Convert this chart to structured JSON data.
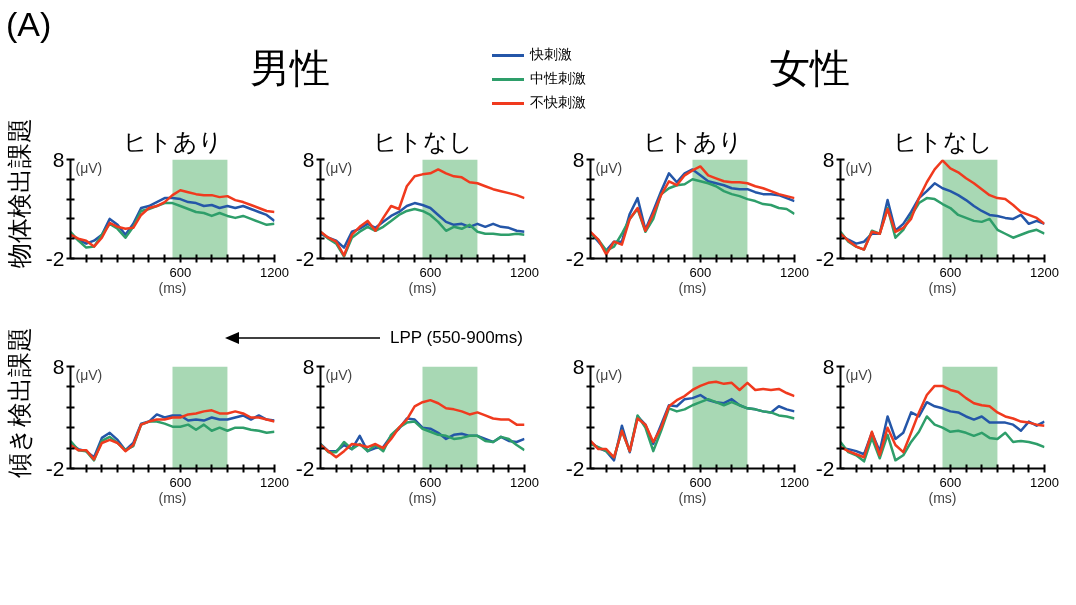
{
  "chart_data": [
    {
      "type": "line",
      "title": "ヒトあり",
      "xlabel": "(ms)",
      "ylabel": "(μV)",
      "legend": "top",
      "annotations": [
        "(A)",
        "男性",
        "物体検出課題",
        "LPP (550-900ms)"
      ],
      "xlim": [
        -100,
        1200
      ],
      "ylim": [
        -2,
        8
      ],
      "xticks": [
        {
          "value": 0,
          "label": null
        },
        {
          "value": 100,
          "label": null
        },
        {
          "value": 200,
          "label": null
        },
        {
          "value": 300,
          "label": null
        },
        {
          "value": 400,
          "label": null
        },
        {
          "value": 500,
          "label": null
        },
        600,
        {
          "value": 700,
          "label": null
        },
        {
          "value": 800,
          "label": null
        },
        {
          "value": 900,
          "label": null
        },
        {
          "value": 1000,
          "label": null
        },
        {
          "value": 1100,
          "label": null
        },
        1200
      ],
      "yticks": [
        -2,
        {
          "value": 0,
          "label": null
        },
        {
          "value": 2,
          "label": null
        },
        {
          "value": 4,
          "label": null
        },
        {
          "value": 6,
          "label": null
        },
        8
      ],
      "bands": [
        {
          "axis": "x",
          "from": 550,
          "to": 900,
          "color": "#a8d8b4"
        }
      ],
      "x": [
        -100,
        -50,
        0,
        50,
        100,
        150,
        200,
        250,
        300,
        350,
        400,
        450,
        500,
        550,
        600,
        650,
        700,
        750,
        800,
        850,
        900,
        950,
        1000,
        1050,
        1100,
        1150,
        1200
      ],
      "series": [
        {
          "name": "快刺激",
          "color": "#2456a8",
          "values": [
            0.4,
            -0.1,
            -0.5,
            -0.2,
            0.4,
            2.0,
            1.4,
            0.4,
            1.5,
            3.1,
            3.3,
            3.7,
            4.1,
            4.1,
            4.0,
            3.7,
            3.6,
            3.3,
            3.4,
            3.1,
            3.3,
            3.1,
            3.3,
            3.0,
            2.7,
            2.4,
            1.8
          ]
        },
        {
          "name": "中性刺激",
          "color": "#2e9e6a",
          "values": [
            0.7,
            -0.2,
            -0.9,
            -0.8,
            0.4,
            1.5,
            1.0,
            0.1,
            1.2,
            2.8,
            3.0,
            3.3,
            3.6,
            3.6,
            3.3,
            3.0,
            2.7,
            2.6,
            2.3,
            2.6,
            2.3,
            2.1,
            2.3,
            2.0,
            1.7,
            1.4,
            1.5
          ]
        },
        {
          "name": "不快刺激",
          "color": "#f03a1e",
          "values": [
            0.4,
            0,
            -0.2,
            -0.8,
            0.1,
            1.6,
            1.2,
            1.0,
            1.1,
            2.4,
            3.1,
            3.3,
            3.7,
            4.4,
            4.9,
            4.7,
            4.5,
            4.4,
            4.4,
            4.2,
            4.3,
            3.9,
            3.7,
            3.4,
            3.1,
            2.8,
            2.7
          ]
        }
      ]
    },
    {
      "type": "line",
      "title": "ヒトなし",
      "xlabel": "(ms)",
      "ylabel": "(μV)",
      "xlim": [
        -100,
        1200
      ],
      "ylim": [
        -2,
        8
      ],
      "xticks": [
        {
          "value": 0,
          "label": null
        },
        {
          "value": 100,
          "label": null
        },
        {
          "value": 200,
          "label": null
        },
        {
          "value": 300,
          "label": null
        },
        {
          "value": 400,
          "label": null
        },
        {
          "value": 500,
          "label": null
        },
        600,
        {
          "value": 700,
          "label": null
        },
        {
          "value": 800,
          "label": null
        },
        {
          "value": 900,
          "label": null
        },
        {
          "value": 1000,
          "label": null
        },
        {
          "value": 1100,
          "label": null
        },
        1200
      ],
      "yticks": [
        -2,
        {
          "value": 0,
          "label": null
        },
        {
          "value": 2,
          "label": null
        },
        {
          "value": 4,
          "label": null
        },
        {
          "value": 6,
          "label": null
        },
        8
      ],
      "bands": [
        {
          "axis": "x",
          "from": 550,
          "to": 900,
          "color": "#a8d8b4"
        }
      ],
      "x": [
        -100,
        -50,
        0,
        50,
        100,
        150,
        200,
        250,
        300,
        350,
        400,
        450,
        500,
        550,
        600,
        650,
        700,
        750,
        800,
        850,
        900,
        950,
        1000,
        1050,
        1100,
        1150,
        1200
      ],
      "series": [
        {
          "color": "#2456a8",
          "values": [
            0.5,
            0.1,
            -0.2,
            -0.9,
            0.7,
            1.0,
            1.5,
            1.1,
            1.7,
            2.3,
            2.7,
            3.3,
            3.6,
            3.4,
            3.1,
            2.4,
            1.7,
            1.4,
            1.5,
            1.2,
            1.5,
            1.2,
            1.5,
            1.2,
            1.1,
            0.8,
            0.7
          ]
        },
        {
          "color": "#2e9e6a",
          "values": [
            0.7,
            0,
            -0.5,
            -1.8,
            0.1,
            0.7,
            1.2,
            0.8,
            1.2,
            1.8,
            2.4,
            2.8,
            3.0,
            2.8,
            2.4,
            1.7,
            0.8,
            1.2,
            1.0,
            1.4,
            0.7,
            0.5,
            0.5,
            0.4,
            0.4,
            0.5,
            0.4
          ]
        },
        {
          "color": "#f03a1e",
          "values": [
            0.7,
            0.1,
            -0.3,
            -1.7,
            0.4,
            1.2,
            1.8,
            0.8,
            2.1,
            3.3,
            3.0,
            5.3,
            6.3,
            6.5,
            6.6,
            7.0,
            6.6,
            6.3,
            6.2,
            5.7,
            5.6,
            5.3,
            5.0,
            4.8,
            4.6,
            4.4,
            4.1
          ]
        }
      ]
    },
    {
      "type": "line",
      "title": "ヒトあり",
      "xlabel": "(ms)",
      "ylabel": "(μV)",
      "annotations": [
        "女性"
      ],
      "xlim": [
        -100,
        1200
      ],
      "ylim": [
        -2,
        8
      ],
      "xticks": [
        {
          "value": 0,
          "label": null
        },
        {
          "value": 100,
          "label": null
        },
        {
          "value": 200,
          "label": null
        },
        {
          "value": 300,
          "label": null
        },
        {
          "value": 400,
          "label": null
        },
        {
          "value": 500,
          "label": null
        },
        600,
        {
          "value": 700,
          "label": null
        },
        {
          "value": 800,
          "label": null
        },
        {
          "value": 900,
          "label": null
        },
        {
          "value": 1000,
          "label": null
        },
        {
          "value": 1100,
          "label": null
        },
        1200
      ],
      "yticks": [
        -2,
        {
          "value": 0,
          "label": null
        },
        {
          "value": 2,
          "label": null
        },
        {
          "value": 4,
          "label": null
        },
        {
          "value": 6,
          "label": null
        },
        8
      ],
      "bands": [
        {
          "axis": "x",
          "from": 550,
          "to": 900,
          "color": "#a8d8b4"
        }
      ],
      "x": [
        -100,
        -50,
        0,
        50,
        100,
        150,
        200,
        250,
        300,
        350,
        400,
        450,
        500,
        550,
        600,
        650,
        700,
        750,
        800,
        850,
        900,
        950,
        1000,
        1050,
        1100,
        1150,
        1200
      ],
      "series": [
        {
          "color": "#2456a8",
          "values": [
            0.6,
            -0.3,
            -1.2,
            -0.3,
            -0.3,
            2.5,
            4.1,
            0.9,
            2.8,
            4.8,
            6.6,
            5.7,
            6.6,
            7.0,
            6.4,
            5.8,
            5.6,
            5.4,
            5.1,
            5.0,
            5.0,
            4.7,
            4.5,
            4.5,
            4.4,
            4.1,
            3.8
          ]
        },
        {
          "color": "#2e9e6a",
          "values": [
            0.5,
            -0.1,
            -1.2,
            -0.8,
            0.5,
            2.0,
            3.0,
            0.7,
            2.0,
            4.5,
            5.1,
            5.4,
            5.5,
            6.0,
            5.8,
            5.6,
            5.3,
            4.8,
            4.5,
            4.3,
            4.0,
            3.8,
            3.5,
            3.4,
            3.1,
            3.0,
            2.5
          ]
        },
        {
          "color": "#f03a1e",
          "values": [
            0.7,
            -0.1,
            -1.6,
            -0.3,
            -0.6,
            2.0,
            3.1,
            0.8,
            2.5,
            4.4,
            5.8,
            5.4,
            6.4,
            6.9,
            7.3,
            6.4,
            6.1,
            5.8,
            5.7,
            5.7,
            5.6,
            5.3,
            5.1,
            4.8,
            4.5,
            4.3,
            4.1
          ]
        }
      ]
    },
    {
      "type": "line",
      "title": "ヒトなし",
      "xlabel": "(ms)",
      "ylabel": "(μV)",
      "xlim": [
        -100,
        1200
      ],
      "ylim": [
        -2,
        8
      ],
      "xticks": [
        {
          "value": 0,
          "label": null
        },
        {
          "value": 100,
          "label": null
        },
        {
          "value": 200,
          "label": null
        },
        {
          "value": 300,
          "label": null
        },
        {
          "value": 400,
          "label": null
        },
        {
          "value": 500,
          "label": null
        },
        600,
        {
          "value": 700,
          "label": null
        },
        {
          "value": 800,
          "label": null
        },
        {
          "value": 900,
          "label": null
        },
        {
          "value": 1000,
          "label": null
        },
        {
          "value": 1100,
          "label": null
        },
        1200
      ],
      "yticks": [
        -2,
        {
          "value": 0,
          "label": null
        },
        {
          "value": 2,
          "label": null
        },
        {
          "value": 4,
          "label": null
        },
        {
          "value": 6,
          "label": null
        },
        8
      ],
      "bands": [
        {
          "axis": "x",
          "from": 550,
          "to": 900,
          "color": "#a8d8b4"
        }
      ],
      "x": [
        -100,
        -50,
        0,
        50,
        100,
        150,
        200,
        250,
        300,
        350,
        400,
        450,
        500,
        550,
        600,
        650,
        700,
        750,
        800,
        850,
        900,
        950,
        1000,
        1050,
        1100,
        1150,
        1200
      ],
      "series": [
        {
          "color": "#2456a8",
          "values": [
            0.4,
            -0.1,
            -0.5,
            -0.3,
            0.5,
            0.5,
            3.9,
            0.8,
            1.5,
            2.7,
            4.1,
            4.8,
            5.6,
            5.1,
            4.8,
            4.4,
            3.9,
            3.3,
            2.8,
            2.4,
            2.3,
            2.1,
            2.0,
            2.4,
            1.5,
            1.8,
            1.5
          ]
        },
        {
          "color": "#2e9e6a",
          "values": [
            0.7,
            -0.3,
            -0.8,
            -1.1,
            0.8,
            0.5,
            3.1,
            0.1,
            0.9,
            2.3,
            3.6,
            4.1,
            4.0,
            3.5,
            3.1,
            2.4,
            2.1,
            1.8,
            1.7,
            2.0,
            0.9,
            0.5,
            0.1,
            0.4,
            0.7,
            0.9,
            0.5
          ]
        },
        {
          "color": "#f03a1e",
          "values": [
            0.5,
            -0.2,
            -0.8,
            -1.1,
            0.7,
            0.5,
            3.0,
            0.7,
            1.1,
            2.0,
            4.1,
            5.7,
            7.0,
            7.9,
            7.1,
            6.7,
            6.1,
            5.6,
            5.0,
            4.4,
            4.1,
            4.0,
            3.4,
            2.7,
            2.4,
            2.1,
            1.5
          ]
        }
      ]
    },
    {
      "type": "line",
      "xlabel": "(ms)",
      "ylabel": "(μV)",
      "annotations": [
        "傾き検出課題"
      ],
      "xlim": [
        -100,
        1200
      ],
      "ylim": [
        -2,
        8
      ],
      "xticks": [
        {
          "value": 0,
          "label": null
        },
        {
          "value": 100,
          "label": null
        },
        {
          "value": 200,
          "label": null
        },
        {
          "value": 300,
          "label": null
        },
        {
          "value": 400,
          "label": null
        },
        {
          "value": 500,
          "label": null
        },
        600,
        {
          "value": 700,
          "label": null
        },
        {
          "value": 800,
          "label": null
        },
        {
          "value": 900,
          "label": null
        },
        {
          "value": 1000,
          "label": null
        },
        {
          "value": 1100,
          "label": null
        },
        1200
      ],
      "yticks": [
        -2,
        {
          "value": 0,
          "label": null
        },
        {
          "value": 2,
          "label": null
        },
        {
          "value": 4,
          "label": null
        },
        {
          "value": 6,
          "label": null
        },
        8
      ],
      "bands": [
        {
          "axis": "x",
          "from": 550,
          "to": 900,
          "color": "#a8d8b4"
        }
      ],
      "x": [
        -100,
        -50,
        0,
        50,
        100,
        150,
        200,
        250,
        300,
        350,
        400,
        450,
        500,
        550,
        600,
        650,
        700,
        750,
        800,
        850,
        900,
        950,
        1000,
        1050,
        1100,
        1150,
        1200
      ],
      "series": [
        {
          "color": "#2456a8",
          "values": [
            0.4,
            -0.1,
            -0.3,
            -0.9,
            1.0,
            1.5,
            0.8,
            -0.2,
            0.5,
            2.4,
            2.6,
            3.3,
            3.0,
            3.2,
            3.2,
            2.7,
            2.8,
            2.7,
            3.0,
            2.8,
            2.8,
            3.0,
            3.2,
            2.8,
            3.2,
            2.8,
            2.7
          ]
        },
        {
          "color": "#2e9e6a",
          "values": [
            0.7,
            -0.2,
            -0.3,
            -1.2,
            0.7,
            1.1,
            0.5,
            -0.2,
            0.2,
            2.3,
            2.6,
            2.6,
            2.4,
            2.1,
            2.1,
            2.3,
            1.8,
            2.3,
            1.7,
            2.0,
            1.7,
            2.0,
            2.0,
            1.8,
            1.7,
            1.5,
            1.6
          ]
        },
        {
          "color": "#f03a1e",
          "values": [
            0.3,
            -0.2,
            -0.2,
            -1.1,
            0.5,
            0.8,
            0.5,
            -0.3,
            0.3,
            2.3,
            2.6,
            2.8,
            2.8,
            3.0,
            3.0,
            3.3,
            3.4,
            3.6,
            3.7,
            3.4,
            3.4,
            3.6,
            3.4,
            3.0,
            3.0,
            2.8,
            2.6
          ]
        }
      ]
    },
    {
      "type": "line",
      "xlabel": "(ms)",
      "ylabel": "(μV)",
      "xlim": [
        -100,
        1200
      ],
      "ylim": [
        -2,
        8
      ],
      "xticks": [
        {
          "value": 0,
          "label": null
        },
        {
          "value": 100,
          "label": null
        },
        {
          "value": 200,
          "label": null
        },
        {
          "value": 300,
          "label": null
        },
        {
          "value": 400,
          "label": null
        },
        {
          "value": 500,
          "label": null
        },
        600,
        {
          "value": 700,
          "label": null
        },
        {
          "value": 800,
          "label": null
        },
        {
          "value": 900,
          "label": null
        },
        {
          "value": 1000,
          "label": null
        },
        {
          "value": 1100,
          "label": null
        },
        1200
      ],
      "yticks": [
        -2,
        {
          "value": 0,
          "label": null
        },
        {
          "value": 2,
          "label": null
        },
        {
          "value": 4,
          "label": null
        },
        {
          "value": 6,
          "label": null
        },
        8
      ],
      "bands": [
        {
          "axis": "x",
          "from": 550,
          "to": 900,
          "color": "#a8d8b4"
        }
      ],
      "x": [
        -100,
        -50,
        0,
        50,
        100,
        150,
        200,
        250,
        300,
        350,
        400,
        450,
        500,
        550,
        600,
        650,
        700,
        750,
        800,
        850,
        900,
        950,
        1000,
        1050,
        1100,
        1150,
        1200
      ],
      "series": [
        {
          "color": "#2456a8",
          "values": [
            0.4,
            -0.3,
            -0.3,
            0.3,
            -0.1,
            1.2,
            -0.3,
            0,
            0.1,
            1.2,
            1.9,
            2.9,
            2.8,
            2.0,
            1.9,
            1.5,
            0.9,
            1.3,
            1.4,
            1.2,
            1.2,
            0.9,
            0.6,
            1.1,
            0.7,
            0.6,
            0.9
          ]
        },
        {
          "color": "#2e9e6a",
          "values": [
            0.4,
            -0.4,
            -0.4,
            0.6,
            -0.1,
            0.4,
            -0.3,
            0.3,
            -0.3,
            1.3,
            2.0,
            2.5,
            2.6,
            1.9,
            1.6,
            1.3,
            1.2,
            0.9,
            1.0,
            1.2,
            1.2,
            0.7,
            0.6,
            1.1,
            0.9,
            0.3,
            -0.2
          ]
        },
        {
          "color": "#f03a1e",
          "values": [
            0.3,
            -0.3,
            -0.9,
            -0.3,
            0.4,
            0.3,
            0.1,
            0.4,
            0,
            0.9,
            2.0,
            2.8,
            4.1,
            4.5,
            4.7,
            4.4,
            3.9,
            3.8,
            3.6,
            3.3,
            3.5,
            3.2,
            2.9,
            2.8,
            2.8,
            2.3,
            2.3
          ]
        }
      ]
    },
    {
      "type": "line",
      "xlabel": "(ms)",
      "ylabel": "(μV)",
      "xlim": [
        -100,
        1200
      ],
      "ylim": [
        -2,
        8
      ],
      "xticks": [
        {
          "value": 0,
          "label": null
        },
        {
          "value": 100,
          "label": null
        },
        {
          "value": 200,
          "label": null
        },
        {
          "value": 300,
          "label": null
        },
        {
          "value": 400,
          "label": null
        },
        {
          "value": 500,
          "label": null
        },
        600,
        {
          "value": 700,
          "label": null
        },
        {
          "value": 800,
          "label": null
        },
        {
          "value": 900,
          "label": null
        },
        {
          "value": 1000,
          "label": null
        },
        {
          "value": 1100,
          "label": null
        },
        1200
      ],
      "yticks": [
        -2,
        {
          "value": 0,
          "label": null
        },
        {
          "value": 2,
          "label": null
        },
        {
          "value": 4,
          "label": null
        },
        {
          "value": 6,
          "label": null
        },
        8
      ],
      "bands": [
        {
          "axis": "x",
          "from": 550,
          "to": 900,
          "color": "#a8d8b4"
        }
      ],
      "x": [
        -100,
        -50,
        0,
        50,
        100,
        150,
        200,
        250,
        300,
        350,
        400,
        450,
        500,
        550,
        600,
        650,
        700,
        750,
        800,
        850,
        900,
        950,
        1000,
        1050,
        1100,
        1150,
        1200
      ],
      "series": [
        {
          "color": "#2456a8",
          "values": [
            0.6,
            0,
            -0.3,
            -1.2,
            2.2,
            -0.4,
            3.1,
            2.3,
            0.4,
            2.3,
            4.2,
            4.1,
            4.8,
            4.9,
            5.2,
            4.7,
            4.5,
            4.4,
            4.8,
            4.2,
            3.9,
            3.8,
            3.6,
            3.5,
            4.1,
            3.8,
            3.6
          ]
        },
        {
          "color": "#2e9e6a",
          "values": [
            0.4,
            0.1,
            -0.3,
            -0.9,
            1.7,
            -0.3,
            3.2,
            2.0,
            -0.3,
            1.7,
            3.9,
            3.6,
            3.8,
            4.2,
            4.5,
            4.8,
            4.5,
            4.2,
            4.5,
            4.2,
            3.9,
            3.8,
            3.6,
            3.5,
            3.2,
            3.1,
            2.9
          ]
        },
        {
          "color": "#f03a1e",
          "values": [
            0.7,
            -0.1,
            -0.1,
            -0.9,
            1.7,
            -0.3,
            2.9,
            2.3,
            0.6,
            2.0,
            4.1,
            4.7,
            5.1,
            5.7,
            6.1,
            6.4,
            6.5,
            6.3,
            6.4,
            5.7,
            6.4,
            5.7,
            5.8,
            5.7,
            5.8,
            5.4,
            5.1
          ]
        }
      ]
    },
    {
      "type": "line",
      "xlabel": "(ms)",
      "ylabel": "(μV)",
      "xlim": [
        -100,
        1200
      ],
      "ylim": [
        -2,
        8
      ],
      "xticks": [
        {
          "value": 0,
          "label": null
        },
        {
          "value": 100,
          "label": null
        },
        {
          "value": 200,
          "label": null
        },
        {
          "value": 300,
          "label": null
        },
        {
          "value": 400,
          "label": null
        },
        {
          "value": 500,
          "label": null
        },
        600,
        {
          "value": 700,
          "label": null
        },
        {
          "value": 800,
          "label": null
        },
        {
          "value": 900,
          "label": null
        },
        {
          "value": 1000,
          "label": null
        },
        {
          "value": 1100,
          "label": null
        },
        1200
      ],
      "yticks": [
        -2,
        {
          "value": 0,
          "label": null
        },
        {
          "value": 2,
          "label": null
        },
        {
          "value": 4,
          "label": null
        },
        {
          "value": 6,
          "label": null
        },
        8
      ],
      "bands": [
        {
          "axis": "x",
          "from": 550,
          "to": 900,
          "color": "#a8d8b4"
        }
      ],
      "x": [
        -100,
        -50,
        0,
        50,
        100,
        150,
        200,
        250,
        300,
        350,
        400,
        450,
        500,
        550,
        600,
        650,
        700,
        750,
        800,
        850,
        900,
        950,
        1000,
        1050,
        1100,
        1150,
        1200
      ],
      "series": [
        {
          "color": "#2456a8",
          "values": [
            0,
            -0.1,
            -0.3,
            -0.6,
            1.5,
            -0.3,
            3.1,
            0.9,
            1.5,
            3.5,
            3.1,
            4.5,
            4.1,
            3.9,
            3.6,
            3.5,
            3.1,
            2.8,
            3.1,
            2.5,
            2.5,
            2.5,
            2.3,
            1.7,
            2.6,
            2.2,
            2.6
          ]
        },
        {
          "color": "#2e9e6a",
          "values": [
            0.6,
            -0.4,
            -0.7,
            -1.3,
            1.0,
            -1.0,
            1.3,
            -1.2,
            -0.7,
            0.6,
            1.6,
            3.1,
            2.3,
            2.0,
            1.6,
            1.7,
            1.5,
            1.2,
            1.5,
            1.0,
            0.9,
            1.5,
            0.6,
            0.7,
            0.6,
            0.4,
            0.1
          ]
        },
        {
          "color": "#f03a1e",
          "values": [
            0.1,
            -0.3,
            -0.6,
            -0.9,
            1.6,
            -0.7,
            2.0,
            0.3,
            -0.4,
            1.5,
            3.5,
            5.2,
            6.1,
            6.1,
            5.7,
            5.5,
            4.9,
            4.4,
            4.2,
            4.1,
            3.5,
            3.1,
            2.9,
            2.6,
            2.5,
            2.3,
            2.2
          ]
        }
      ]
    }
  ]
}
